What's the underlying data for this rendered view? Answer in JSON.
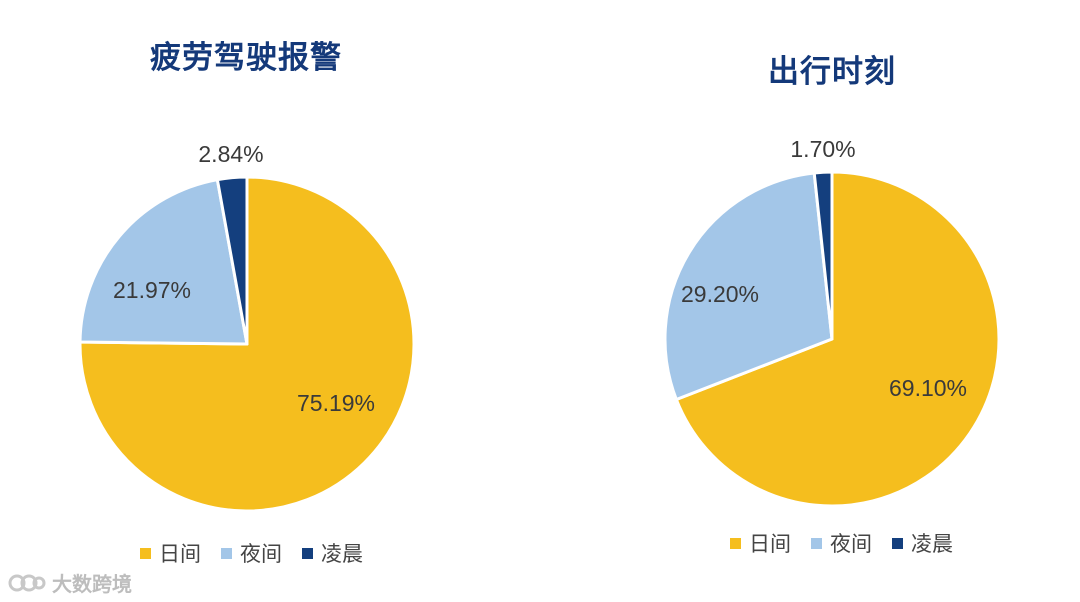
{
  "chart_data": [
    {
      "type": "pie",
      "title": "疲劳驾驶报警",
      "categories": [
        "日间",
        "夜间",
        "凌晨"
      ],
      "values": [
        75.19,
        21.97,
        2.84
      ],
      "labels": [
        "75.19%",
        "21.97%",
        "2.84%"
      ],
      "colors": [
        "#F5BE1E",
        "#A3C6E8",
        "#143F7E"
      ],
      "legend": "bottom"
    },
    {
      "type": "pie",
      "title": "出行时刻",
      "categories": [
        "日间",
        "夜间",
        "凌晨"
      ],
      "values": [
        69.1,
        29.2,
        1.7
      ],
      "labels": [
        "69.10%",
        "29.20%",
        "1.70%"
      ],
      "colors": [
        "#F5BE1E",
        "#A3C6E8",
        "#143F7E"
      ],
      "legend": "bottom"
    }
  ],
  "watermark": {
    "text": "大数跨境"
  }
}
